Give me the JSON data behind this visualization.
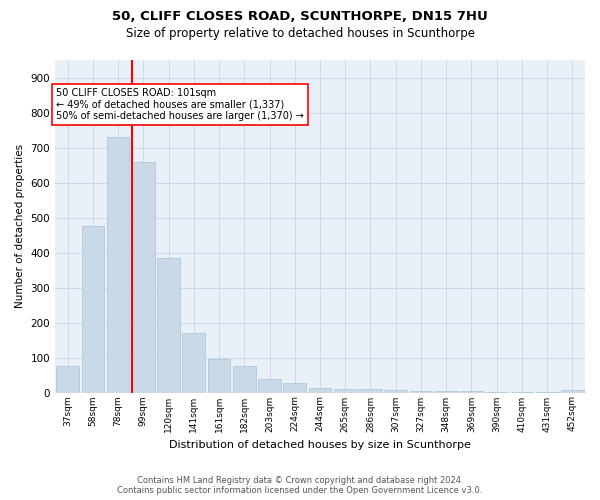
{
  "title1": "50, CLIFF CLOSES ROAD, SCUNTHORPE, DN15 7HU",
  "title2": "Size of property relative to detached houses in Scunthorpe",
  "xlabel": "Distribution of detached houses by size in Scunthorpe",
  "ylabel": "Number of detached properties",
  "categories": [
    "37sqm",
    "58sqm",
    "78sqm",
    "99sqm",
    "120sqm",
    "141sqm",
    "161sqm",
    "182sqm",
    "203sqm",
    "224sqm",
    "244sqm",
    "265sqm",
    "286sqm",
    "307sqm",
    "327sqm",
    "348sqm",
    "369sqm",
    "390sqm",
    "410sqm",
    "431sqm",
    "452sqm"
  ],
  "values": [
    75,
    475,
    730,
    660,
    385,
    170,
    97,
    75,
    40,
    28,
    12,
    10,
    10,
    7,
    5,
    4,
    3,
    2,
    1,
    1,
    7
  ],
  "bar_color": "#c9d9e8",
  "bar_edge_color": "#a8c4d8",
  "redline_index": 3,
  "redline_label": "50 CLIFF CLOSES ROAD: 101sqm",
  "annotation_line1": "← 49% of detached houses are smaller (1,337)",
  "annotation_line2": "50% of semi-detached houses are larger (1,370) →",
  "ylim": [
    0,
    950
  ],
  "yticks": [
    0,
    100,
    200,
    300,
    400,
    500,
    600,
    700,
    800,
    900
  ],
  "grid_color": "#cdd8e8",
  "background_color": "#eaf0f8",
  "footer1": "Contains HM Land Registry data © Crown copyright and database right 2024.",
  "footer2": "Contains public sector information licensed under the Open Government Licence v3.0."
}
